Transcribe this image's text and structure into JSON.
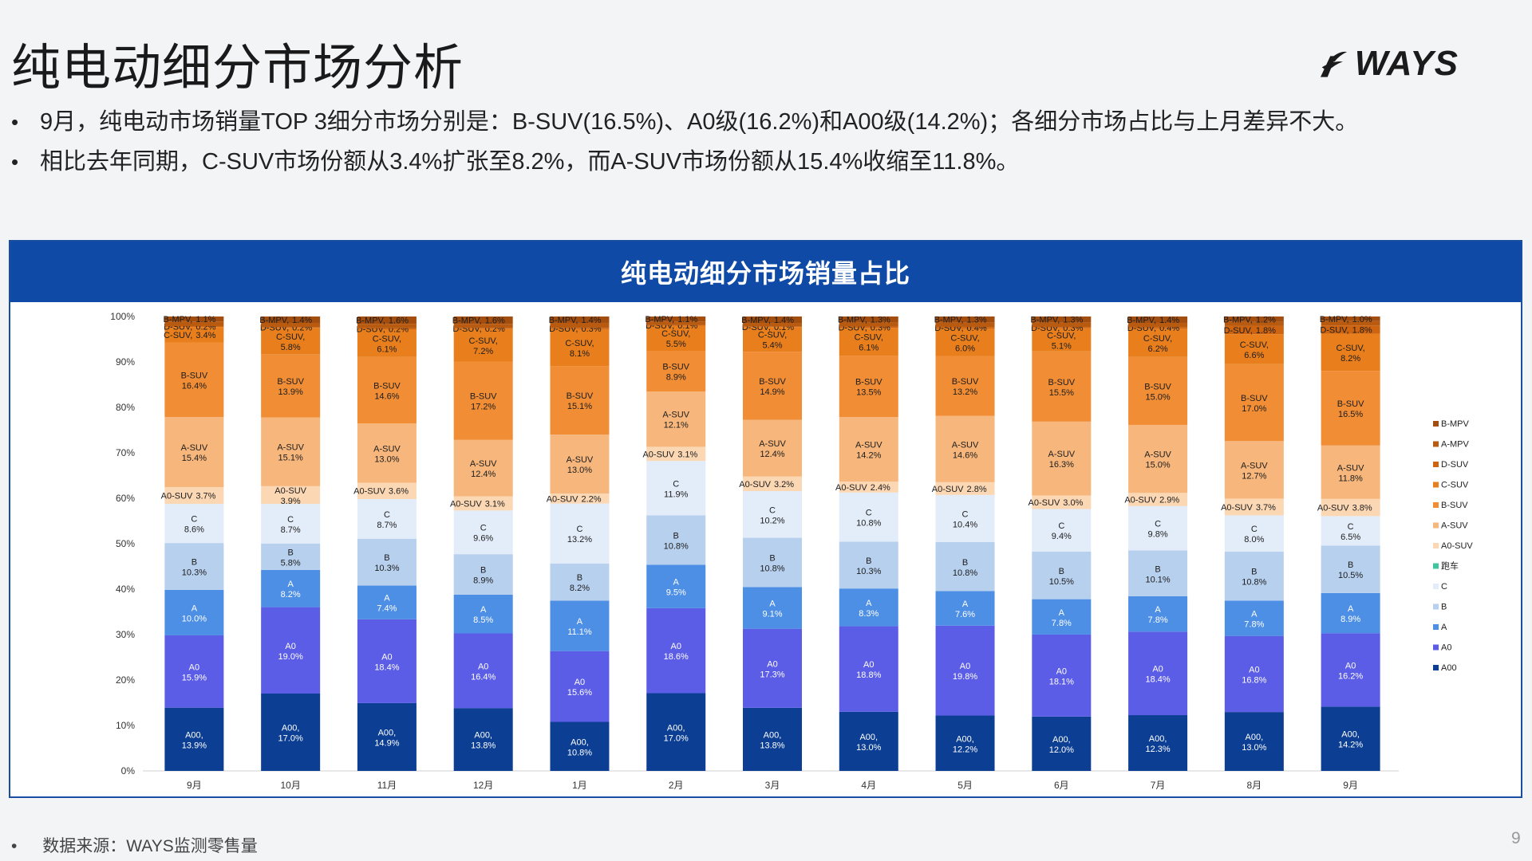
{
  "page": {
    "title": "纯电动细分市场分析",
    "logo_text": "WAYS",
    "bullets": [
      "9月，纯电动市场销量TOP 3细分市场分别是：B-SUV(16.5%)、A0级(16.2%)和A00级(14.2%)；各细分市场占比与上月差异不大。",
      "相比去年同期，C-SUV市场份额从3.4%扩张至8.2%，而A-SUV市场份额从15.4%收缩至11.8%。"
    ],
    "bullet_symbol": "•",
    "source_note": "数据来源：WAYS监测零售量",
    "page_number": "9"
  },
  "chart_data": {
    "type": "bar",
    "stacked": true,
    "percent": true,
    "title": "纯电动细分市场销量占比",
    "categories": [
      "9月",
      "10月",
      "11月",
      "12月",
      "1月",
      "2月",
      "3月",
      "4月",
      "5月",
      "6月",
      "7月",
      "8月",
      "9月"
    ],
    "yticks": [
      "0%",
      "10%",
      "20%",
      "30%",
      "40%",
      "50%",
      "60%",
      "70%",
      "80%",
      "90%",
      "100%"
    ],
    "ylim": [
      0,
      100
    ],
    "legend_position": "right",
    "series": [
      {
        "name": "A00",
        "color": "#0c3f94",
        "label": "A00,",
        "values": [
          13.9,
          17.0,
          14.9,
          13.8,
          10.8,
          17.0,
          13.8,
          13.0,
          12.2,
          12.0,
          12.3,
          13.0,
          14.2
        ],
        "value_labels": [
          "13.9%",
          "17.0%",
          "14.9%",
          "13.8%",
          "10.8%",
          "17.0%",
          "13.8%",
          "13.0%",
          "12.2%",
          "12.0%",
          "12.3%",
          "13.0%",
          "14.2%"
        ]
      },
      {
        "name": "A0",
        "color": "#5b5de6",
        "label": "A0",
        "values": [
          15.9,
          19.0,
          18.4,
          16.4,
          15.6,
          18.6,
          17.3,
          18.8,
          19.8,
          18.1,
          18.4,
          16.8,
          16.2
        ],
        "value_labels": [
          "15.9%",
          "19.0%",
          "18.4%",
          "16.4%",
          "15.6%",
          "18.6%",
          "17.3%",
          "18.8%",
          "19.8%",
          "18.1%",
          "18.4%",
          "16.8%",
          "16.2%"
        ]
      },
      {
        "name": "A",
        "color": "#4e8fe6",
        "label": "A",
        "values": [
          10.0,
          8.2,
          7.4,
          8.5,
          11.1,
          9.5,
          9.1,
          8.3,
          7.6,
          7.8,
          7.8,
          7.8,
          8.9
        ],
        "value_labels": [
          "10.0%",
          "8.2%",
          "7.4%",
          "8.5%",
          "11.1%",
          "9.5%",
          "9.1%",
          "8.3%",
          "7.6%",
          "7.8%",
          "7.8%",
          "7.8%",
          "8.9%"
        ]
      },
      {
        "name": "B",
        "color": "#b7d0ee",
        "label": "B",
        "values": [
          10.3,
          5.8,
          10.3,
          8.9,
          8.2,
          10.8,
          10.8,
          10.3,
          10.8,
          10.5,
          10.1,
          10.8,
          10.5
        ],
        "value_labels": [
          "10.3%",
          "5.8%",
          "10.3%",
          "8.9%",
          "8.2%",
          "10.8%",
          "10.8%",
          "10.3%",
          "10.8%",
          "10.5%",
          "10.1%",
          "10.8%",
          "10.5%"
        ]
      },
      {
        "name": "C",
        "color": "#e3edf9",
        "label": "C",
        "values": [
          8.6,
          8.7,
          8.7,
          9.6,
          13.2,
          11.9,
          10.2,
          10.8,
          10.4,
          9.4,
          9.8,
          8.0,
          6.5
        ],
        "value_labels": [
          "8.6%",
          "8.7%",
          "8.7%",
          "9.6%",
          "13.2%",
          "11.9%",
          "10.2%",
          "10.8%",
          "10.4%",
          "9.4%",
          "9.8%",
          "8.0%",
          "6.5%"
        ]
      },
      {
        "name": "跑车",
        "color": "#3fc49e",
        "label": "",
        "values": [
          0,
          0,
          0,
          0,
          0,
          0,
          0,
          0,
          0,
          0,
          0,
          0,
          0
        ],
        "value_labels": [
          "",
          "",
          "",
          "",
          "",
          "",
          "",
          "",
          "",
          "",
          "",
          "",
          ""
        ]
      },
      {
        "name": "A0-SUV",
        "color": "#fbd7b4",
        "label": "A0-SUV",
        "values": [
          3.7,
          3.9,
          3.6,
          3.1,
          2.2,
          3.1,
          3.2,
          2.4,
          2.8,
          3.0,
          2.9,
          3.7,
          3.8
        ],
        "value_labels": [
          "3.7%",
          "3.9%",
          "3.6%",
          "3.1%",
          "2.2%",
          "3.1%",
          "3.2%",
          "2.4%",
          "2.8%",
          "3.0%",
          "2.9%",
          "3.7%",
          "3.8%"
        ]
      },
      {
        "name": "A-SUV",
        "color": "#f6b67c",
        "label": "A-SUV",
        "values": [
          15.4,
          15.1,
          13.0,
          12.4,
          13.0,
          12.1,
          12.4,
          14.2,
          14.6,
          16.3,
          15.0,
          12.7,
          11.8
        ],
        "value_labels": [
          "15.4%",
          "15.1%",
          "13.0%",
          "12.4%",
          "13.0%",
          "12.1%",
          "12.4%",
          "14.2%",
          "14.6%",
          "16.3%",
          "15.0%",
          "12.7%",
          "11.8%"
        ]
      },
      {
        "name": "B-SUV",
        "color": "#f08d35",
        "label": "B-SUV",
        "values": [
          16.4,
          13.9,
          14.6,
          17.2,
          15.1,
          8.9,
          14.9,
          13.5,
          13.2,
          15.5,
          15.0,
          17.0,
          16.5
        ],
        "value_labels": [
          "16.4%",
          "13.9%",
          "14.6%",
          "17.2%",
          "15.1%",
          "8.9%",
          "14.9%",
          "13.5%",
          "13.2%",
          "15.5%",
          "15.0%",
          "17.0%",
          "16.5%"
        ]
      },
      {
        "name": "C-SUV",
        "color": "#e87e1c",
        "label": "C-SUV,",
        "values": [
          3.4,
          5.8,
          6.1,
          7.2,
          8.1,
          5.5,
          5.4,
          6.1,
          6.0,
          5.1,
          6.2,
          6.6,
          8.2
        ],
        "value_labels": [
          "3.4%",
          "5.8%",
          "6.1%",
          "7.2%",
          "8.1%",
          "5.5%",
          "5.4%",
          "6.1%",
          "6.0%",
          "5.1%",
          "6.2%",
          "6.6%",
          "8.2%"
        ]
      },
      {
        "name": "D-SUV",
        "color": "#cf6410",
        "label": "D-SUV,",
        "values": [
          0.2,
          0.2,
          0.2,
          0.2,
          0.3,
          0.1,
          0.1,
          0.3,
          0.4,
          0.3,
          0.4,
          1.8,
          1.8
        ],
        "value_labels": [
          "0.2%",
          "0.2%",
          "0.2%",
          "0.2%",
          "0.3%",
          "0.1%",
          "0.1%",
          "0.3%",
          "0.4%",
          "0.3%",
          "0.4%",
          "1.8%",
          "1.8%"
        ]
      },
      {
        "name": "A-MPV",
        "color": "#b85a10",
        "label": "",
        "values": [
          1.0,
          0.9,
          1.0,
          0.9,
          1.1,
          0.8,
          0.8,
          0.9,
          1.0,
          1.0,
          0.9,
          0.9,
          1.0
        ],
        "value_labels": [
          "",
          "",
          "",
          "",
          "",
          "",
          "",
          "",
          "",
          "",
          "",
          "",
          ""
        ]
      },
      {
        "name": "B-MPV",
        "color": "#a34d0e",
        "label": "B-MPV,",
        "values": [
          1.1,
          1.4,
          1.6,
          1.6,
          1.4,
          1.1,
          1.4,
          1.3,
          1.3,
          1.3,
          1.4,
          1.2,
          1.0
        ],
        "value_labels": [
          "1.1%",
          "1.4%",
          "1.6%",
          "1.6%",
          "1.4%",
          "1.1%",
          "1.4%",
          "1.3%",
          "1.3%",
          "1.3%",
          "1.4%",
          "1.2%",
          "1.0%"
        ]
      }
    ],
    "legend": [
      "B-MPV",
      "A-MPV",
      "D-SUV",
      "C-SUV",
      "B-SUV",
      "A-SUV",
      "A0-SUV",
      "跑车",
      "C",
      "B",
      "A",
      "A0",
      "A00"
    ]
  }
}
